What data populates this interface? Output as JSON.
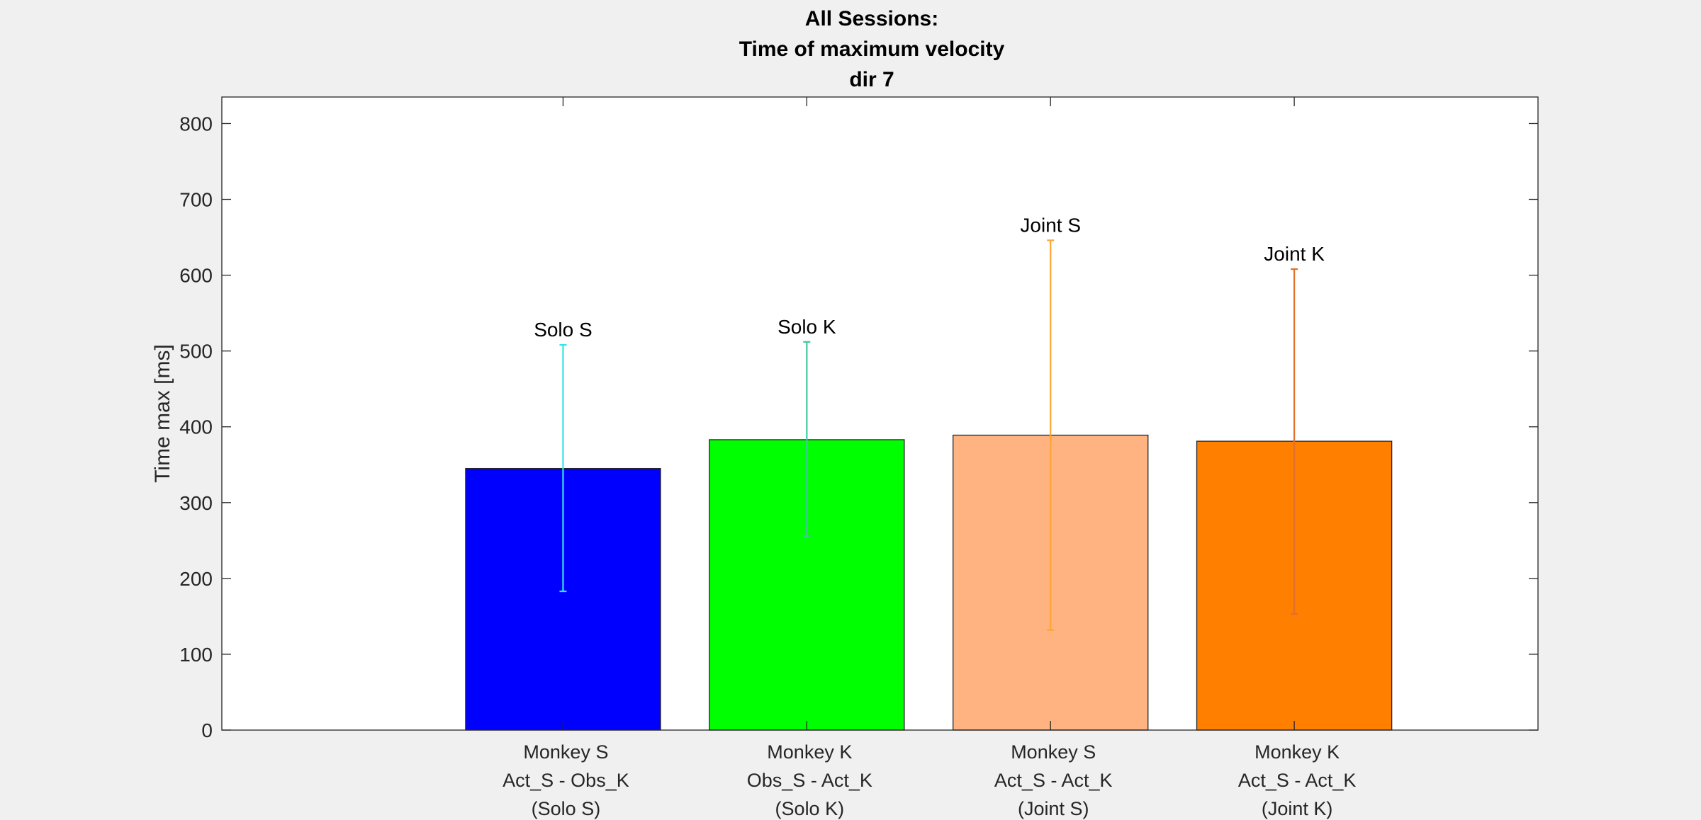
{
  "chart_data": {
    "type": "bar",
    "title_lines": [
      "All Sessions:",
      "Time of maximum velocity",
      "dir 7"
    ],
    "xlabel": "",
    "ylabel": "Time max [ms]",
    "ylim": [
      0,
      835
    ],
    "yticks": [
      0,
      100,
      200,
      300,
      400,
      500,
      600,
      700,
      800
    ],
    "xlim": [
      0.2,
      5.6
    ],
    "grid": false,
    "categories": [
      [
        "Monkey S",
        "Act_S - Obs_K",
        "(Solo S)"
      ],
      [
        "Monkey K",
        "Obs_S - Act_K",
        "(Solo K)"
      ],
      [
        "Monkey S",
        "Act_S - Act_K",
        "(Joint S)"
      ],
      [
        "Monkey K",
        "Act_S - Act_K",
        "(Joint K)"
      ]
    ],
    "values": [
      345,
      383,
      389,
      381
    ],
    "error_low": [
      183,
      256,
      132,
      153
    ],
    "error_high": [
      508,
      512,
      646,
      608
    ],
    "annotations": [
      "Solo S",
      "Solo K",
      "Joint S",
      "Joint K"
    ],
    "bar_colors": [
      "#0000ff",
      "#00ff00",
      "#ffb380",
      "#ff8000"
    ],
    "error_colors": [
      "#33e6e6",
      "#40c8a0",
      "#ffa533",
      "#e0702a"
    ]
  }
}
